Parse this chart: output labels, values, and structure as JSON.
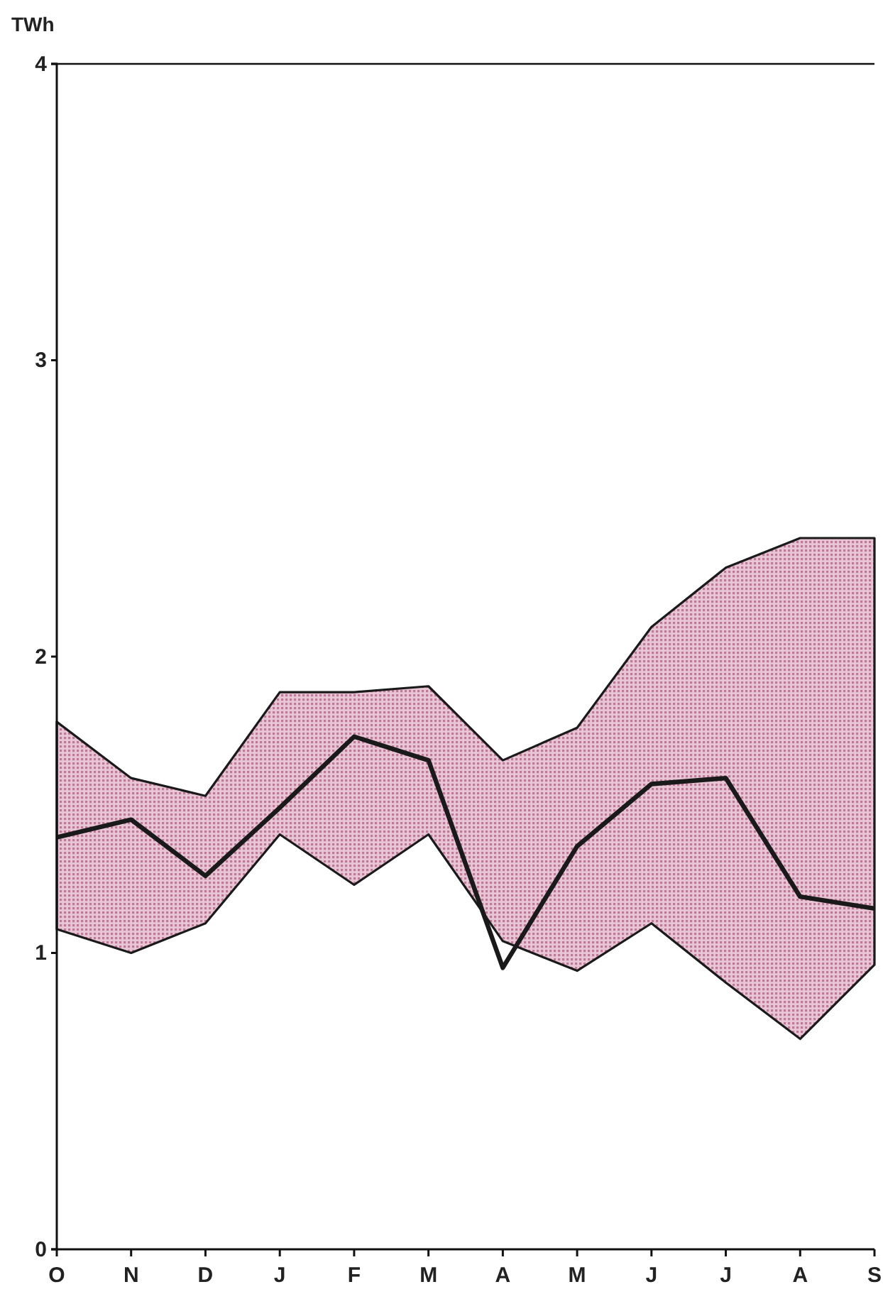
{
  "chart_data": {
    "type": "line",
    "ylabel": "TWh",
    "categories": [
      "O",
      "N",
      "D",
      "J",
      "F",
      "M",
      "A",
      "M",
      "J",
      "J",
      "A",
      "S"
    ],
    "ylim": [
      0,
      4
    ],
    "yticks": [
      0,
      1,
      2,
      3,
      4
    ],
    "grid": false,
    "marker": "none",
    "line_style": "solid",
    "series": [
      {
        "color": "#1a1a1a",
        "values": [
          1.39,
          1.45,
          1.26,
          1.49,
          1.73,
          1.65,
          0.95,
          1.36,
          1.57,
          1.59,
          1.19,
          1.15
        ],
        "lower": [
          1.08,
          1.0,
          1.1,
          1.4,
          1.23,
          1.4,
          1.04,
          0.94,
          1.1,
          0.9,
          0.71,
          0.96
        ],
        "upper": [
          1.78,
          1.59,
          1.53,
          1.88,
          1.88,
          1.9,
          1.65,
          1.76,
          2.1,
          2.3,
          2.4,
          2.4
        ]
      }
    ]
  }
}
